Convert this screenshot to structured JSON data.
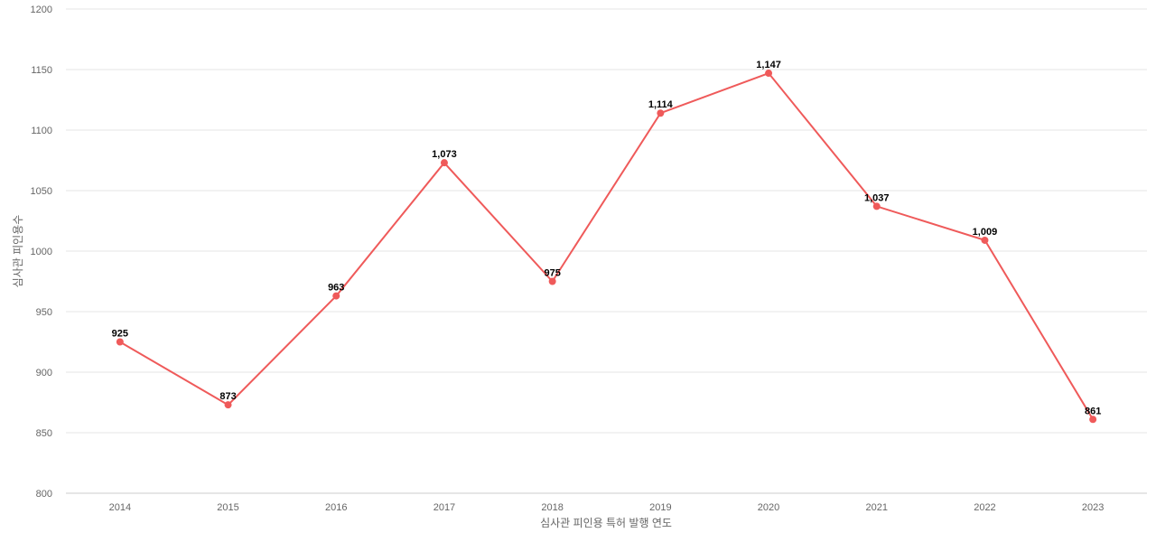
{
  "chart_data": {
    "type": "line",
    "title": "",
    "xlabel": "심사관 피인용 특허 발행 연도",
    "ylabel": "심사관 피인용수",
    "categories": [
      "2014",
      "2015",
      "2016",
      "2017",
      "2018",
      "2019",
      "2020",
      "2021",
      "2022",
      "2023"
    ],
    "series": [
      {
        "values": [
          925,
          873,
          963,
          1073,
          975,
          1114,
          1147,
          1037,
          1009,
          861
        ],
        "labels": [
          "925",
          "873",
          "963",
          "1,073",
          "975",
          "1,114",
          "1,147",
          "1,037",
          "1,009",
          "861"
        ],
        "color": "#ef5a5a"
      }
    ],
    "ylim": [
      800,
      1200
    ],
    "yticks": [
      800,
      850,
      900,
      950,
      1000,
      1050,
      1100,
      1150,
      1200
    ],
    "grid": true,
    "legend": "none"
  }
}
